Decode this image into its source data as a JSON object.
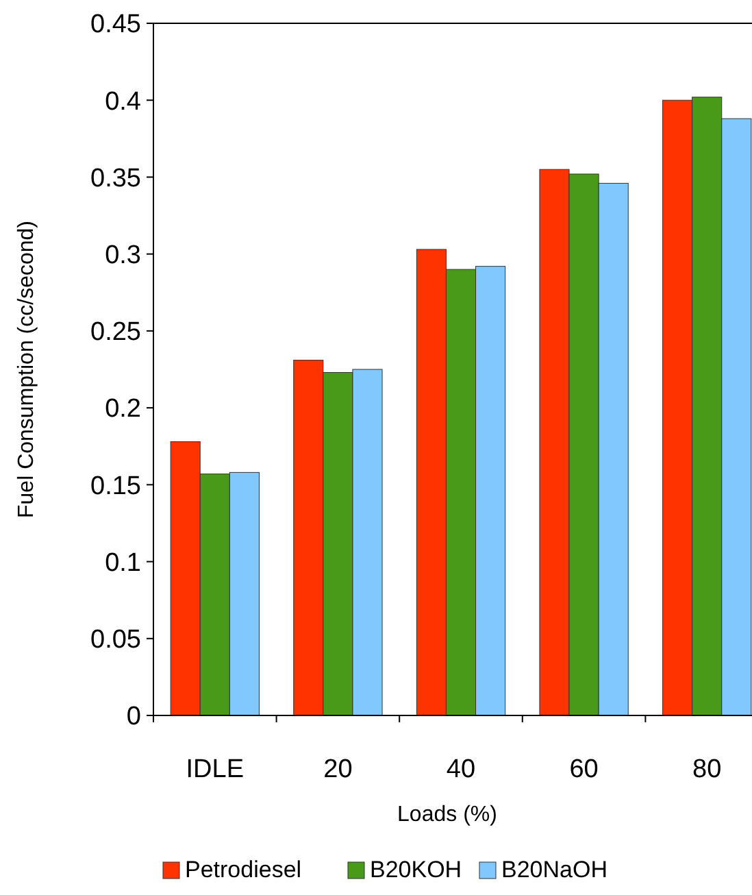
{
  "chart_data": {
    "type": "bar",
    "xlabel": "Loads (%)",
    "ylabel": "Fuel Consumption (cc/second)",
    "categories": [
      "IDLE",
      "20",
      "40",
      "60",
      "80"
    ],
    "series": [
      {
        "name": "Petrodiesel",
        "color": "#ff3300",
        "values": [
          0.178,
          0.231,
          0.303,
          0.355,
          0.4
        ]
      },
      {
        "name": "B20KOH",
        "color": "#4a9a1a",
        "values": [
          0.157,
          0.223,
          0.29,
          0.352,
          0.402
        ]
      },
      {
        "name": "B20NaOH",
        "color": "#80c8ff",
        "values": [
          0.158,
          0.225,
          0.292,
          0.346,
          0.388
        ]
      }
    ],
    "ylim": [
      0,
      0.45
    ],
    "yticks": [
      0,
      0.05,
      0.1,
      0.15,
      0.2,
      0.25,
      0.3,
      0.35,
      0.4,
      0.45
    ],
    "grid": false,
    "legend": "bottom"
  }
}
